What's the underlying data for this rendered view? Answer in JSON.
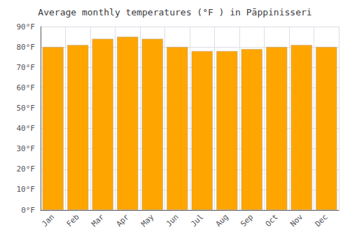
{
  "chart_data": {
    "type": "bar",
    "title": "Average monthly temperatures (°F ) in Pāppinisseri",
    "categories": [
      "Jan",
      "Feb",
      "Mar",
      "Apr",
      "May",
      "Jun",
      "Jul",
      "Aug",
      "Sep",
      "Oct",
      "Nov",
      "Dec"
    ],
    "values": [
      80,
      81,
      84,
      85,
      84,
      80,
      78,
      78,
      79,
      80,
      81,
      80
    ],
    "color": "#FFA500",
    "ylim": [
      0,
      90
    ],
    "yticks": [
      {
        "value": 0,
        "label": "0°F"
      },
      {
        "value": 10,
        "label": "10°F"
      },
      {
        "value": 20,
        "label": "20°F"
      },
      {
        "value": 30,
        "label": "30°F"
      },
      {
        "value": 40,
        "label": "40°F"
      },
      {
        "value": 50,
        "label": "50°F"
      },
      {
        "value": 60,
        "label": "60°F"
      },
      {
        "value": 70,
        "label": "70°F"
      },
      {
        "value": 80,
        "label": "80°F"
      },
      {
        "value": 90,
        "label": "90°F"
      }
    ],
    "grid": true
  }
}
